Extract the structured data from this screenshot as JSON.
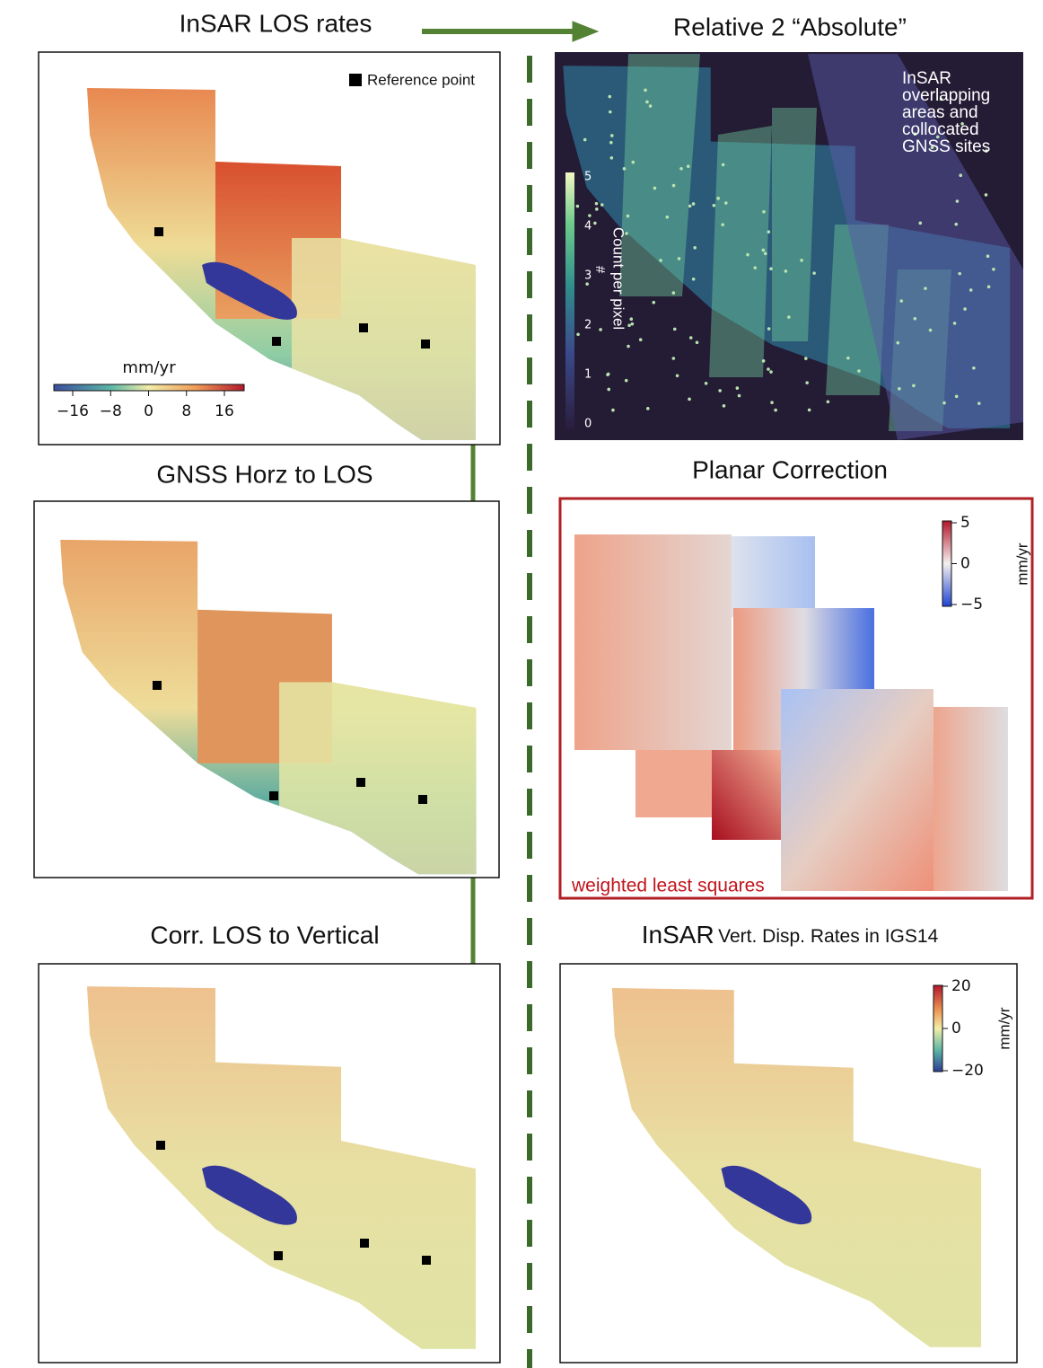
{
  "panels": [
    {
      "title": "InSAR LOS rates",
      "legend": "Reference point",
      "colorbar": {
        "label": "mm/yr",
        "ticks": [
          "−16",
          "−8",
          "0",
          "8",
          "16"
        ]
      }
    },
    {
      "title": "Relative 2 “Absolute”",
      "annotation": [
        "InSAR",
        "overlapping",
        "areas and",
        "collocated",
        "GNSS sites"
      ],
      "colorbar": {
        "label": "Count per pixel",
        "symbol": "#",
        "ticks": [
          "0",
          "1",
          "2",
          "3",
          "4",
          "5"
        ]
      }
    },
    {
      "title": "GNSS Horz to LOS"
    },
    {
      "title": "Planar Correction",
      "colorbar": {
        "label": "mm/yr",
        "ticks": [
          "5",
          "0",
          "−5"
        ]
      },
      "note": "weighted least squares"
    },
    {
      "title": "Corr. LOS to Vertical"
    },
    {
      "title": [
        "InSAR",
        "Vert. Disp. Rates in IGS14"
      ],
      "colorbar": {
        "label": "mm/yr",
        "ticks": [
          "20",
          "0",
          "−20"
        ]
      }
    }
  ]
}
